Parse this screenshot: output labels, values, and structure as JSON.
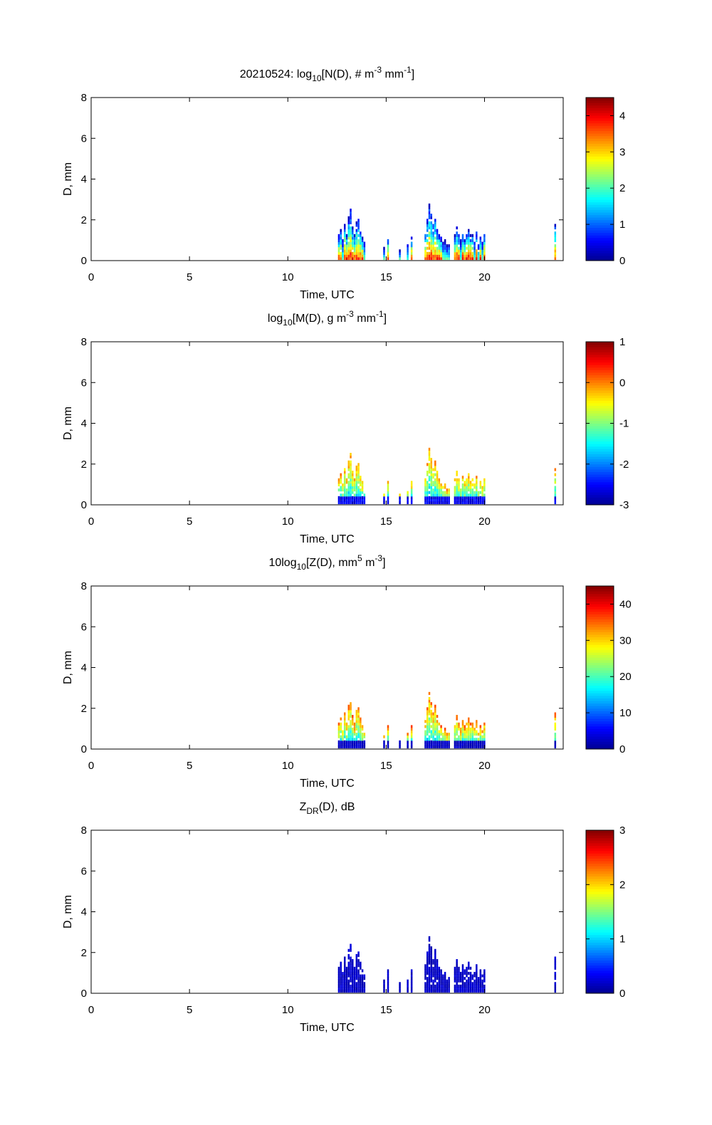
{
  "colormap": [
    "#00008f",
    "#0000ff",
    "#0080ff",
    "#00ffff",
    "#80ff80",
    "#ffff00",
    "#ff8000",
    "#ff0000",
    "#800000"
  ],
  "chart_data": [
    {
      "type": "heatmap",
      "title": {
        "prefix": "20210524: log",
        "sub": "10",
        "mid": "[N(D), # m",
        "sup1": "-3",
        "mid2": " mm",
        "sup2": "-1",
        "end": "]"
      },
      "xlabel": "Time, UTC",
      "ylabel": "D, mm",
      "xlim": [
        0,
        24
      ],
      "ylim": [
        0,
        8
      ],
      "xticks": [
        0,
        5,
        10,
        15,
        20
      ],
      "yticks": [
        0,
        2,
        4,
        6,
        8
      ],
      "clim": [
        0,
        4.5
      ],
      "cticks": [
        0,
        1,
        2,
        3,
        4
      ],
      "ctick_labels": [
        "0",
        "1",
        "2",
        "3",
        "4"
      ]
    },
    {
      "type": "heatmap",
      "title": {
        "prefix": "log",
        "sub": "10",
        "mid": "[M(D), g m",
        "sup1": "-3",
        "mid2": " mm",
        "sup2": "-1",
        "end": "]"
      },
      "xlabel": "Time, UTC",
      "ylabel": "D, mm",
      "xlim": [
        0,
        24
      ],
      "ylim": [
        0,
        8
      ],
      "xticks": [
        0,
        5,
        10,
        15,
        20
      ],
      "yticks": [
        0,
        2,
        4,
        6,
        8
      ],
      "clim": [
        -3,
        1
      ],
      "cticks": [
        -3,
        -2,
        -1,
        0,
        1
      ],
      "ctick_labels": [
        "-3",
        "-2",
        "-1",
        "0",
        "1"
      ]
    },
    {
      "type": "heatmap",
      "title": {
        "prefix": "10log",
        "sub": "10",
        "mid": "[Z(D),  mm",
        "sup1": "5",
        "mid2": " m",
        "sup2": "-3",
        "end": "]"
      },
      "xlabel": "Time, UTC",
      "ylabel": "D, mm",
      "xlim": [
        0,
        24
      ],
      "ylim": [
        0,
        8
      ],
      "xticks": [
        0,
        5,
        10,
        15,
        20
      ],
      "yticks": [
        0,
        2,
        4,
        6,
        8
      ],
      "clim": [
        0,
        45
      ],
      "cticks": [
        0,
        10,
        20,
        30,
        40
      ],
      "ctick_labels": [
        "0",
        "10",
        "20",
        "30",
        "40"
      ]
    },
    {
      "type": "heatmap",
      "title": {
        "prefix": "Z",
        "sub": "DR",
        "mid": "(D), dB",
        "sup1": "",
        "mid2": "",
        "sup2": "",
        "end": ""
      },
      "xlabel": "Time, UTC",
      "ylabel": "D, mm",
      "xlim": [
        0,
        24
      ],
      "ylim": [
        0,
        8
      ],
      "xticks": [
        0,
        5,
        10,
        15,
        20
      ],
      "yticks": [
        0,
        2,
        4,
        6,
        8
      ],
      "clim": [
        0,
        3
      ],
      "cticks": [
        0,
        1,
        2,
        3
      ],
      "ctick_labels": [
        "0",
        "1",
        "2",
        "3"
      ]
    }
  ],
  "precip_columns": [
    {
      "t": 12.55,
      "dmax": 1.2
    },
    {
      "t": 12.65,
      "dmax": 1.5
    },
    {
      "t": 12.75,
      "dmax": 1.0
    },
    {
      "t": 12.85,
      "dmax": 1.8
    },
    {
      "t": 12.95,
      "dmax": 1.3
    },
    {
      "t": 13.05,
      "dmax": 2.1
    },
    {
      "t": 13.15,
      "dmax": 2.5
    },
    {
      "t": 13.25,
      "dmax": 1.6
    },
    {
      "t": 13.35,
      "dmax": 1.2
    },
    {
      "t": 13.45,
      "dmax": 1.9
    },
    {
      "t": 13.55,
      "dmax": 2.0
    },
    {
      "t": 13.65,
      "dmax": 1.5
    },
    {
      "t": 13.75,
      "dmax": 1.1
    },
    {
      "t": 13.85,
      "dmax": 0.9
    },
    {
      "t": 14.85,
      "dmax": 0.6
    },
    {
      "t": 15.05,
      "dmax": 1.1
    },
    {
      "t": 15.65,
      "dmax": 0.5
    },
    {
      "t": 16.05,
      "dmax": 0.8
    },
    {
      "t": 16.25,
      "dmax": 1.1
    },
    {
      "t": 16.95,
      "dmax": 1.4
    },
    {
      "t": 17.05,
      "dmax": 2.0
    },
    {
      "t": 17.15,
      "dmax": 2.7
    },
    {
      "t": 17.25,
      "dmax": 2.3
    },
    {
      "t": 17.35,
      "dmax": 1.8
    },
    {
      "t": 17.45,
      "dmax": 2.1
    },
    {
      "t": 17.55,
      "dmax": 1.6
    },
    {
      "t": 17.65,
      "dmax": 1.3
    },
    {
      "t": 17.75,
      "dmax": 1.1
    },
    {
      "t": 17.85,
      "dmax": 0.9
    },
    {
      "t": 17.95,
      "dmax": 1.0
    },
    {
      "t": 18.05,
      "dmax": 0.7
    },
    {
      "t": 18.15,
      "dmax": 0.8
    },
    {
      "t": 18.45,
      "dmax": 1.2
    },
    {
      "t": 18.55,
      "dmax": 1.6
    },
    {
      "t": 18.65,
      "dmax": 1.3
    },
    {
      "t": 18.75,
      "dmax": 1.0
    },
    {
      "t": 18.85,
      "dmax": 1.4
    },
    {
      "t": 18.95,
      "dmax": 1.1
    },
    {
      "t": 19.05,
      "dmax": 1.3
    },
    {
      "t": 19.15,
      "dmax": 1.5
    },
    {
      "t": 19.25,
      "dmax": 1.2
    },
    {
      "t": 19.35,
      "dmax": 1.3
    },
    {
      "t": 19.45,
      "dmax": 1.0
    },
    {
      "t": 19.55,
      "dmax": 1.4
    },
    {
      "t": 19.65,
      "dmax": 0.8
    },
    {
      "t": 19.75,
      "dmax": 1.1
    },
    {
      "t": 19.85,
      "dmax": 0.9
    },
    {
      "t": 19.95,
      "dmax": 1.3
    },
    {
      "t": 23.55,
      "dmax": 1.75
    }
  ]
}
